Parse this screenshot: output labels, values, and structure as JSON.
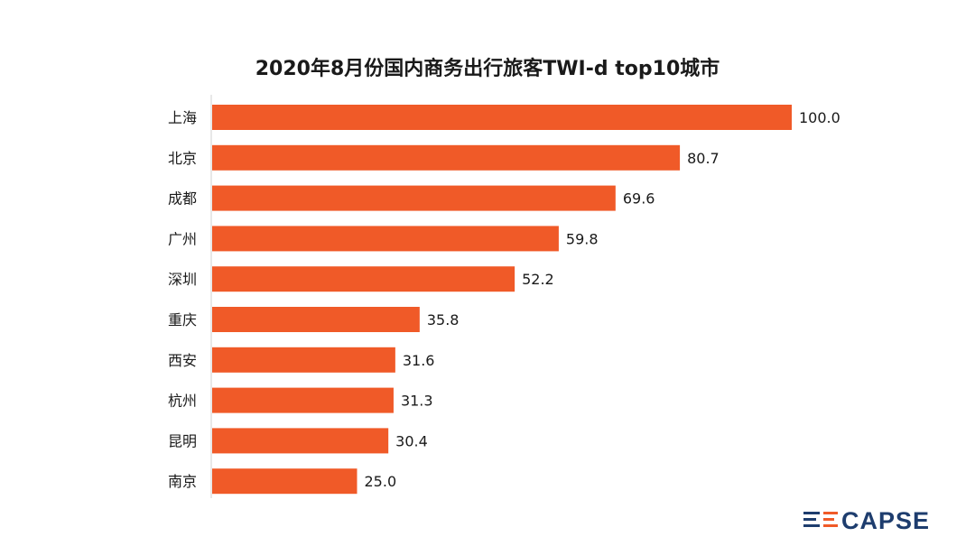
{
  "chart_data": {
    "type": "bar",
    "orientation": "horizontal",
    "title": "2020年8月份国内商务出行旅客TWI-d top10城市",
    "categories": [
      "上海",
      "北京",
      "成都",
      "广州",
      "深圳",
      "重庆",
      "西安",
      "杭州",
      "昆明",
      "南京"
    ],
    "values": [
      100.0,
      80.7,
      69.6,
      59.8,
      52.2,
      35.8,
      31.6,
      31.3,
      30.4,
      25.0
    ],
    "value_labels": [
      "100.0",
      "80.7",
      "69.6",
      "59.8",
      "52.2",
      "35.8",
      "31.6",
      "31.3",
      "30.4",
      "25.0"
    ],
    "xlim": [
      0,
      100
    ],
    "grid": false,
    "bar_color": "#f05a28"
  },
  "brand": {
    "logo_text": "CAPSE",
    "logo_color": "#1e3d6e",
    "accent_color": "#f05a28"
  }
}
